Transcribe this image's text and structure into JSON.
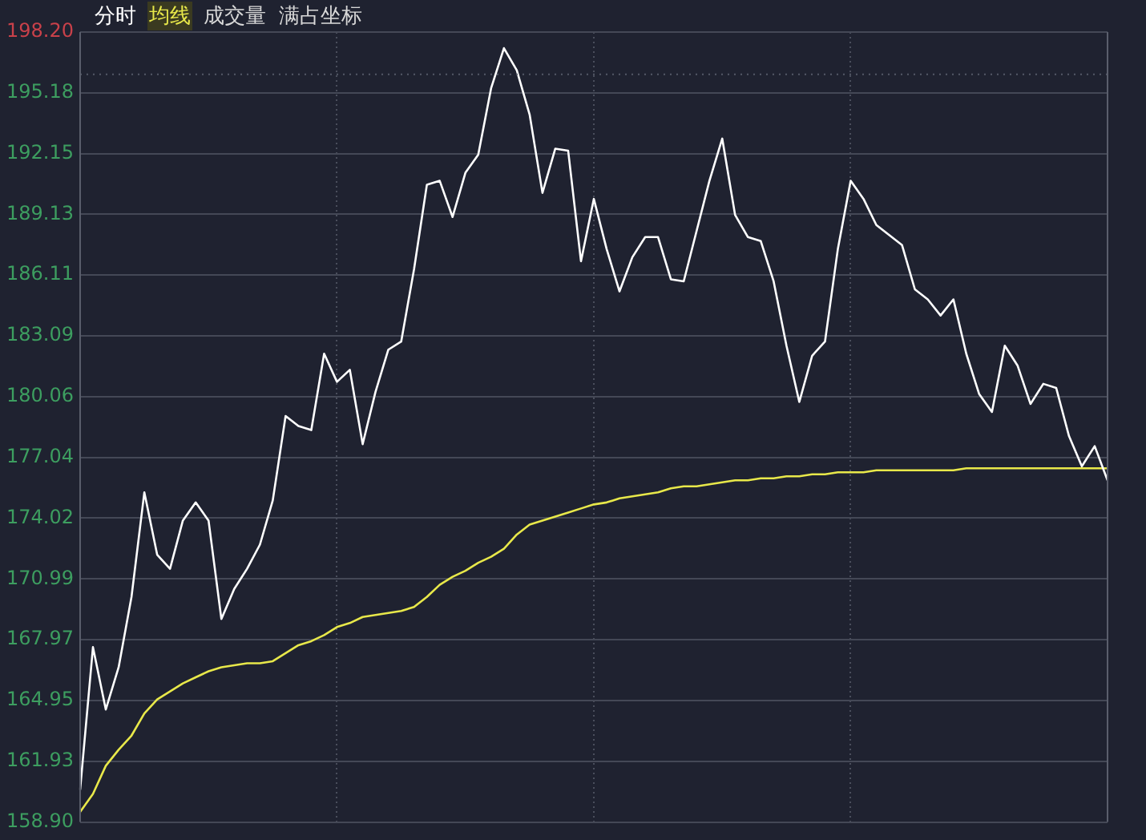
{
  "chart_data": {
    "type": "line",
    "categories": [
      null,
      null,
      null,
      null,
      null,
      null,
      null,
      null,
      null,
      null,
      null,
      null,
      null,
      null,
      null,
      null,
      null,
      null,
      null,
      null,
      null,
      null,
      null,
      null,
      null,
      null,
      null,
      null,
      null,
      null,
      null,
      null,
      null,
      null,
      null,
      null,
      null,
      null,
      null,
      null,
      null,
      null,
      null,
      null,
      null,
      null,
      null,
      null,
      null,
      null,
      null,
      null,
      null,
      null,
      null,
      null,
      null,
      null,
      null,
      null,
      null,
      null,
      null,
      null,
      null,
      null,
      null,
      null,
      null,
      null,
      null,
      null,
      null,
      null,
      null,
      null,
      null,
      null,
      null,
      null,
      null
    ],
    "series": [
      {
        "name": "分时",
        "color": "#ffffff",
        "values": [
          160.5,
          167.6,
          164.5,
          166.6,
          170.1,
          175.3,
          172.2,
          171.5,
          173.9,
          174.8,
          173.9,
          169.0,
          170.5,
          171.5,
          172.7,
          174.9,
          179.1,
          178.6,
          178.4,
          182.2,
          180.8,
          181.4,
          177.7,
          180.3,
          182.4,
          182.8,
          186.4,
          190.6,
          190.8,
          189.0,
          191.2,
          192.1,
          195.4,
          197.4,
          196.3,
          194.1,
          190.2,
          192.4,
          192.3,
          186.8,
          189.9,
          187.4,
          185.3,
          187.0,
          188.0,
          188.0,
          185.9,
          185.8,
          188.3,
          190.8,
          192.9,
          189.1,
          188.0,
          187.8,
          185.8,
          182.6,
          179.8,
          182.1,
          182.8,
          187.4,
          190.8,
          189.9,
          188.6,
          188.1,
          187.6,
          185.4,
          184.9,
          184.1,
          184.9,
          182.2,
          180.2,
          179.3,
          182.6,
          181.6,
          179.7,
          180.7,
          180.5,
          178.1,
          176.6,
          177.6,
          175.9
        ]
      },
      {
        "name": "均线",
        "color": "#e8e84a",
        "values": [
          159.4,
          160.3,
          161.7,
          162.5,
          163.2,
          164.3,
          165.0,
          165.4,
          165.8,
          166.1,
          166.4,
          166.6,
          166.7,
          166.8,
          166.8,
          166.9,
          167.3,
          167.7,
          167.9,
          168.2,
          168.6,
          168.8,
          169.1,
          169.2,
          169.3,
          169.4,
          169.6,
          170.1,
          170.7,
          171.1,
          171.4,
          171.8,
          172.1,
          172.5,
          173.2,
          173.7,
          173.9,
          174.1,
          174.3,
          174.5,
          174.7,
          174.8,
          175.0,
          175.1,
          175.2,
          175.3,
          175.5,
          175.6,
          175.6,
          175.7,
          175.8,
          175.9,
          175.9,
          176.0,
          176.0,
          176.1,
          176.1,
          176.2,
          176.2,
          176.3,
          176.3,
          176.3,
          176.4,
          176.4,
          176.4,
          176.4,
          176.4,
          176.4,
          176.4,
          176.5,
          176.5,
          176.5,
          176.5,
          176.5,
          176.5,
          176.5,
          176.5,
          176.5,
          176.5,
          176.5,
          176.5
        ]
      }
    ],
    "ylim": [
      158.9,
      198.2
    ],
    "yticks": [
      {
        "value": 158.9,
        "label": "158.90"
      },
      {
        "value": 161.93,
        "label": "161.93"
      },
      {
        "value": 164.95,
        "label": "164.95"
      },
      {
        "value": 167.97,
        "label": "167.97"
      },
      {
        "value": 170.99,
        "label": "170.99"
      },
      {
        "value": 174.02,
        "label": "174.02"
      },
      {
        "value": 177.04,
        "label": "177.04"
      },
      {
        "value": 180.06,
        "label": "180.06"
      },
      {
        "value": 183.09,
        "label": "183.09"
      },
      {
        "value": 186.11,
        "label": "186.11"
      },
      {
        "value": 189.13,
        "label": "189.13"
      },
      {
        "value": 192.15,
        "label": "192.15"
      },
      {
        "value": 195.18,
        "label": "195.18"
      },
      {
        "value": 198.2,
        "label": "198.20"
      }
    ],
    "ref_lines": [
      {
        "axis": "y",
        "value": 196.1,
        "line_style": "dotted",
        "color": "#555a68"
      }
    ],
    "annotations": [
      "成交量",
      "满占坐标"
    ],
    "grid": true,
    "legend": "top left",
    "tick_labels": "y",
    "marker": "none",
    "line_style": "solid"
  }
}
